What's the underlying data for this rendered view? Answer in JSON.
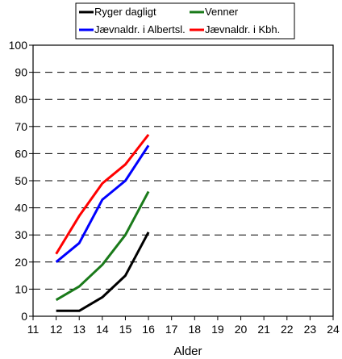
{
  "chart_data": {
    "type": "line",
    "xlabel": "Alder",
    "ylabel": "",
    "xlim": [
      11,
      24
    ],
    "ylim": [
      0,
      100
    ],
    "x_ticks": [
      "11",
      "12",
      "13",
      "14",
      "15",
      "16",
      "17",
      "18",
      "19",
      "20",
      "21",
      "22",
      "23",
      "24"
    ],
    "y_ticks": [
      "0",
      "10",
      "20",
      "30",
      "40",
      "50",
      "60",
      "70",
      "80",
      "90",
      "100"
    ],
    "grid": "horizontal dashed",
    "legend_position": "top",
    "x": [
      12,
      13,
      14,
      15,
      16
    ],
    "series": [
      {
        "name": "Ryger dagligt",
        "color": "#000000",
        "values": [
          2,
          2,
          7,
          15,
          31
        ]
      },
      {
        "name": "Venner",
        "color": "#1a7a1a",
        "values": [
          6,
          11,
          19,
          30,
          46
        ]
      },
      {
        "name": "Jævnaldr. i Albertsl.",
        "color": "#0000ff",
        "values": [
          20,
          27,
          43,
          50,
          63
        ]
      },
      {
        "name": "Jævnaldr. i Kbh.",
        "color": "#ff0000",
        "values": [
          23,
          37,
          49,
          56,
          67
        ]
      }
    ]
  }
}
